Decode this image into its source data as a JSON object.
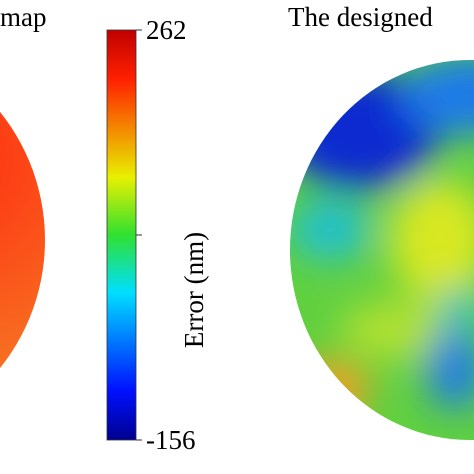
{
  "left_title": "map",
  "right_title": "The designed",
  "colorbar": {
    "label": "Error (nm)",
    "lim": [
      -156,
      262
    ],
    "ticks": [
      -156,
      53,
      262
    ]
  }
}
